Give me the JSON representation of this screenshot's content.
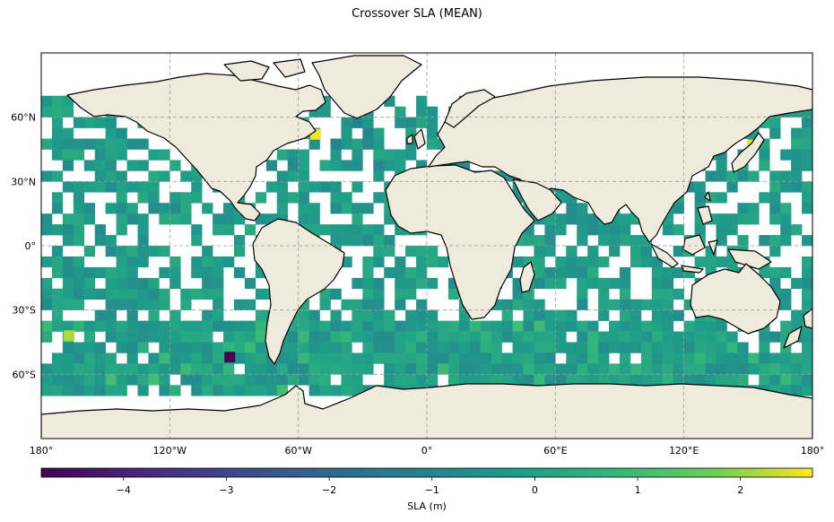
{
  "title": "Crossover SLA (MEAN)",
  "map": {
    "projection": "PlateCarree",
    "extent": {
      "lon": [
        -180,
        180
      ],
      "lat": [
        -90,
        90
      ]
    },
    "land_color": "#efebdc",
    "coast_color": "#000000",
    "gridlines": true,
    "lon_ticks": [
      {
        "value": -180,
        "label": "180°"
      },
      {
        "value": -120,
        "label": "120°W"
      },
      {
        "value": -60,
        "label": "60°W"
      },
      {
        "value": 0,
        "label": "0°"
      },
      {
        "value": 60,
        "label": "60°E"
      },
      {
        "value": 120,
        "label": "120°E"
      },
      {
        "value": 180,
        "label": "180°"
      }
    ],
    "lat_ticks": [
      {
        "value": 60,
        "label": "60°N"
      },
      {
        "value": 30,
        "label": "30°N"
      },
      {
        "value": 0,
        "label": "0°"
      },
      {
        "value": -30,
        "label": "30°S"
      },
      {
        "value": -60,
        "label": "60°S"
      }
    ],
    "grid_cell_deg": 5,
    "coverage_lat": [
      -70,
      70
    ]
  },
  "colorbar": {
    "label": "SLA (m)",
    "colormap": "viridis",
    "vmin": -4.8,
    "vmax": 2.7,
    "ticks": [
      -4,
      -3,
      -2,
      -1,
      0,
      1,
      2
    ],
    "tick_labels": [
      "−4",
      "−3",
      "−2",
      "−1",
      "0",
      "1",
      "2"
    ]
  },
  "chart_data": {
    "type": "heatmap",
    "title": "Crossover SLA (MEAN)",
    "xlabel": "",
    "ylabel": "",
    "colorbar_label": "SLA (m)",
    "typical_range": [
      -1.5,
      0.8
    ],
    "extremes": [
      {
        "lon": -92,
        "lat": -52,
        "value": -4.8
      },
      {
        "lon": -52,
        "lat": 52,
        "value": 2.6
      },
      {
        "lon": 152,
        "lat": 47,
        "value": 2.5
      },
      {
        "lon": -167,
        "lat": -42,
        "value": 2.2
      }
    ]
  }
}
